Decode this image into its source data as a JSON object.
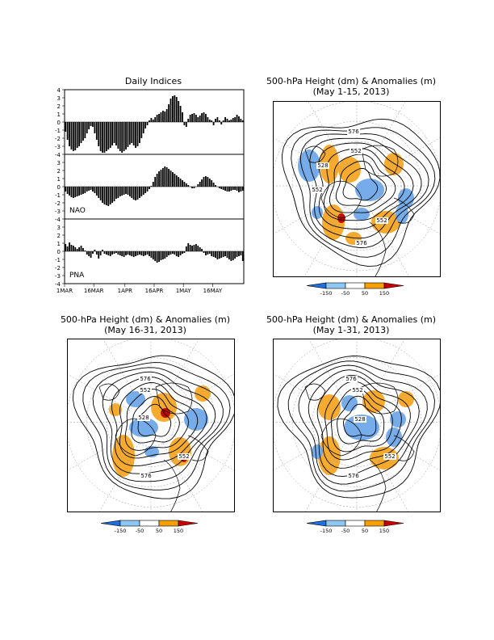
{
  "indices_title": "Daily Indices",
  "map_title_main": "500-hPa Height (dm) & Anomalies (m)",
  "maps": [
    {
      "id": "may1_15",
      "subtitle": "(May 1-15, 2013)",
      "contour_labels": [
        "576",
        "552",
        "528",
        "552",
        "552",
        "576"
      ]
    },
    {
      "id": "may16_31",
      "subtitle": "(May 16-31, 2013)",
      "contour_labels": [
        "576",
        "552",
        "528",
        "552",
        "576"
      ]
    },
    {
      "id": "may1_31",
      "subtitle": "(May 1-31, 2013)",
      "contour_labels": [
        "576",
        "552",
        "528",
        "552",
        "576"
      ]
    }
  ],
  "colorbar": {
    "labels": [
      "-150",
      "-50",
      "50",
      "150"
    ],
    "colors": [
      "#1f6fe0",
      "#8fc7f4",
      "#ffffff",
      "#f5a000",
      "#c80000"
    ]
  },
  "colors": {
    "neg_anom": "#6fa8e8",
    "pos_anom": "#f5a623",
    "strong_pos": "#c00000",
    "strong_neg": "#2060c0"
  },
  "chart_data": {
    "type": "bar",
    "x_tick_labels": [
      "1MAR",
      "16MAR",
      "1APR",
      "16APR",
      "1MAY",
      "16MAY"
    ],
    "ylim": [
      -4,
      4
    ],
    "y_ticks": [
      "4",
      "3",
      "2",
      "1",
      "0",
      "-1",
      "-2",
      "-3",
      "-4"
    ],
    "series": [
      {
        "name": "",
        "values": [
          -1.2,
          -2.2,
          -3.0,
          -3.4,
          -3.6,
          -3.5,
          -3.2,
          -3.0,
          -2.6,
          -2.3,
          -2.0,
          -1.4,
          -0.9,
          -0.5,
          -0.6,
          -1.4,
          -2.2,
          -3.0,
          -3.6,
          -3.8,
          -3.8,
          -3.6,
          -3.4,
          -3.2,
          -2.9,
          -2.6,
          -2.9,
          -3.3,
          -3.6,
          -3.8,
          -3.6,
          -3.4,
          -3.1,
          -2.8,
          -2.6,
          -2.9,
          -3.2,
          -3.0,
          -2.6,
          -2.0,
          -1.4,
          -0.8,
          -0.4,
          0.2,
          0.5,
          0.3,
          0.6,
          0.9,
          1.0,
          1.2,
          1.4,
          1.3,
          1.6,
          2.2,
          2.9,
          3.2,
          3.3,
          3.1,
          2.6,
          2.0,
          1.2,
          -0.4,
          -0.6,
          0.4,
          0.9,
          1.0,
          1.1,
          0.9,
          0.6,
          0.8,
          1.1,
          1.2,
          1.0,
          0.6,
          0.3,
          0.2,
          -0.4,
          0.4,
          0.6,
          0.2,
          -0.3,
          0.2,
          0.6,
          0.4,
          0.2,
          0.3,
          0.5,
          0.6,
          0.9,
          0.7,
          0.4,
          0.2
        ]
      },
      {
        "name": "NAO",
        "values": [
          -0.6,
          -0.9,
          -1.1,
          -1.3,
          -1.4,
          -1.3,
          -1.2,
          -1.1,
          -1.0,
          -0.9,
          -0.8,
          -0.6,
          -0.5,
          -0.4,
          -0.6,
          -0.8,
          -1.1,
          -1.4,
          -1.7,
          -2.0,
          -2.2,
          -2.3,
          -2.4,
          -2.2,
          -2.0,
          -1.8,
          -1.5,
          -1.4,
          -1.2,
          -1.1,
          -1.0,
          -0.9,
          -1.0,
          -1.2,
          -1.4,
          -1.6,
          -1.7,
          -1.6,
          -1.4,
          -1.2,
          -1.0,
          -0.8,
          -0.6,
          -0.3,
          0.1,
          0.6,
          1.2,
          1.6,
          1.9,
          2.1,
          2.3,
          2.5,
          2.4,
          2.2,
          2.0,
          1.8,
          1.6,
          1.4,
          1.2,
          1.0,
          0.8,
          0.6,
          0.4,
          0.2,
          0.0,
          -0.2,
          -0.2,
          0.0,
          0.3,
          0.6,
          0.9,
          1.2,
          1.3,
          1.2,
          1.0,
          0.8,
          0.5,
          0.2,
          0.0,
          -0.2,
          -0.3,
          -0.4,
          -0.5,
          -0.6,
          -0.6,
          -0.5,
          -0.4,
          -0.4,
          -0.5,
          -0.7,
          -0.6,
          -0.5
        ]
      },
      {
        "name": "PNA",
        "values": [
          0.9,
          0.6,
          1.1,
          0.8,
          0.7,
          0.5,
          0.3,
          0.5,
          0.7,
          0.4,
          0.1,
          -0.4,
          -0.6,
          -0.8,
          -0.3,
          0.2,
          -0.4,
          -0.9,
          -0.5,
          0.2,
          -0.3,
          -0.4,
          -0.5,
          -0.6,
          -0.4,
          -0.3,
          -0.2,
          -0.4,
          -0.5,
          -0.6,
          -0.7,
          -0.5,
          -0.4,
          -0.5,
          -0.6,
          -0.7,
          -0.6,
          -0.5,
          -0.4,
          -0.5,
          -0.6,
          -0.5,
          -0.4,
          -0.6,
          -0.8,
          -1.0,
          -1.2,
          -1.4,
          -1.3,
          -1.1,
          -1.0,
          -0.9,
          -0.7,
          -0.5,
          -0.4,
          -0.3,
          -0.4,
          -0.6,
          -0.7,
          -0.5,
          -0.3,
          -0.2,
          0.6,
          1.0,
          0.8,
          0.7,
          0.8,
          0.9,
          0.7,
          0.5,
          0.3,
          -0.2,
          -0.5,
          -0.4,
          -0.3,
          -0.6,
          -0.7,
          -0.8,
          -1.0,
          -0.9,
          -0.8,
          -0.7,
          -0.6,
          -0.8,
          -1.0,
          -1.2,
          -1.1,
          -0.9,
          -0.7,
          -0.6,
          -0.5,
          -1.2
        ]
      }
    ]
  }
}
